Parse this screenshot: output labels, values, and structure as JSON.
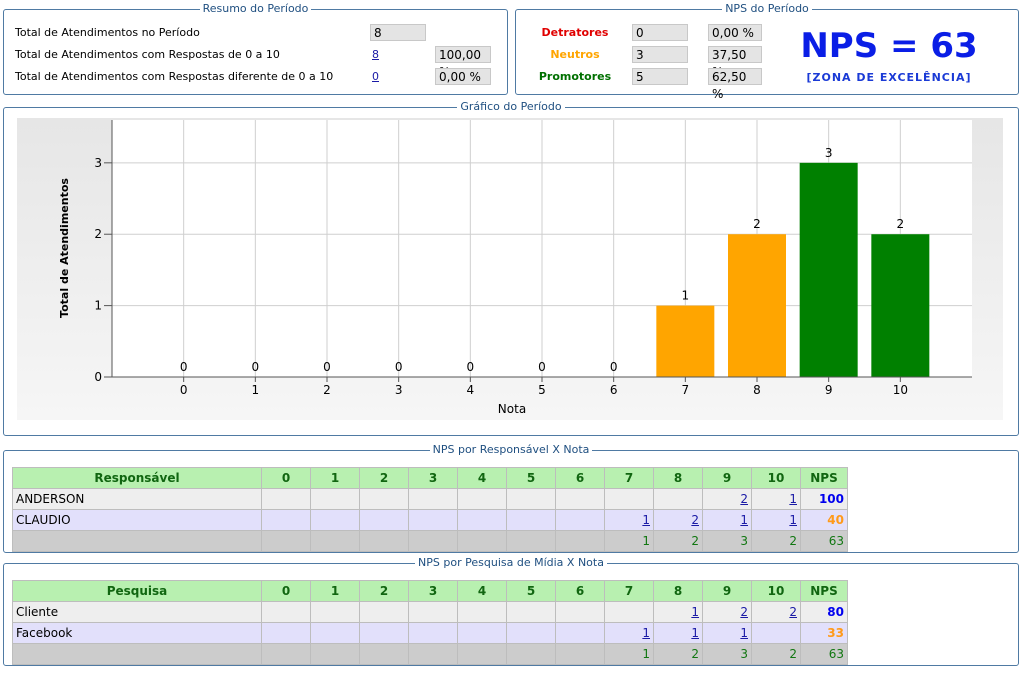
{
  "resumo": {
    "title": "Resumo do Período",
    "rows": [
      {
        "label": "Total de Atendimentos no Período",
        "value": "8"
      },
      {
        "label": "Total de Atendimentos com Respostas de 0 a 10",
        "link": "8",
        "percent": "100,00 %"
      },
      {
        "label": "Total de Atendimentos com Respostas diferente de 0 a 10",
        "link": "0",
        "percent": "0,00 %"
      }
    ]
  },
  "nps": {
    "title": "NPS do Período",
    "rows": [
      {
        "label": "Detratores",
        "count": "0",
        "percent": "0,00 %",
        "color": "#e00000"
      },
      {
        "label": "Neutros",
        "count": "3",
        "percent": "37,50 %",
        "color": "#ffa500"
      },
      {
        "label": "Promotores",
        "count": "5",
        "percent": "62,50 %",
        "color": "#007000"
      }
    ],
    "score": "NPS = 63",
    "zone": "[ZONA DE EXCELÊNCIA]"
  },
  "chart_data": {
    "type": "bar",
    "title": "Gráfico do Período",
    "categories": [
      "0",
      "1",
      "2",
      "3",
      "4",
      "5",
      "6",
      "7",
      "8",
      "9",
      "10"
    ],
    "values": [
      0,
      0,
      0,
      0,
      0,
      0,
      0,
      1,
      2,
      3,
      2
    ],
    "colors": [
      "#e00000",
      "#e00000",
      "#e00000",
      "#e00000",
      "#e00000",
      "#e00000",
      "#e00000",
      "#ffa500",
      "#ffa500",
      "#008000",
      "#008000"
    ],
    "xlabel": "Nota",
    "ylabel": "Total de Atendimentos",
    "ylim": [
      0,
      3.6
    ],
    "yticks": [
      0,
      1,
      2,
      3
    ],
    "grid": true
  },
  "responsavel": {
    "title": "NPS por Responsável X Nota",
    "header": [
      "Responsável",
      "0",
      "1",
      "2",
      "3",
      "4",
      "5",
      "6",
      "7",
      "8",
      "9",
      "10",
      "NPS"
    ],
    "rows": [
      {
        "cells": [
          "ANDERSON",
          null,
          null,
          null,
          null,
          null,
          null,
          null,
          null,
          null,
          "2",
          "1",
          "100"
        ],
        "nps_color": "#0000ee"
      },
      {
        "cells": [
          "CLAUDIO",
          null,
          null,
          null,
          null,
          null,
          null,
          null,
          "1",
          "2",
          "1",
          "1",
          "40"
        ],
        "nps_color": "#ff9a1a"
      }
    ],
    "total": [
      null,
      null,
      null,
      null,
      null,
      null,
      null,
      null,
      "1",
      "2",
      "3",
      "2",
      "63"
    ]
  },
  "pesquisa": {
    "title": "NPS por Pesquisa de Mídia X Nota",
    "header": [
      "Pesquisa",
      "0",
      "1",
      "2",
      "3",
      "4",
      "5",
      "6",
      "7",
      "8",
      "9",
      "10",
      "NPS"
    ],
    "rows": [
      {
        "cells": [
          "Cliente",
          null,
          null,
          null,
          null,
          null,
          null,
          null,
          null,
          "1",
          "2",
          "2",
          "80"
        ],
        "nps_color": "#0000ee"
      },
      {
        "cells": [
          "Facebook",
          null,
          null,
          null,
          null,
          null,
          null,
          null,
          "1",
          "1",
          "1",
          null,
          "33"
        ],
        "nps_color": "#ff9a1a"
      }
    ],
    "total": [
      null,
      null,
      null,
      null,
      null,
      null,
      null,
      null,
      "1",
      "2",
      "3",
      "2",
      "63"
    ]
  }
}
